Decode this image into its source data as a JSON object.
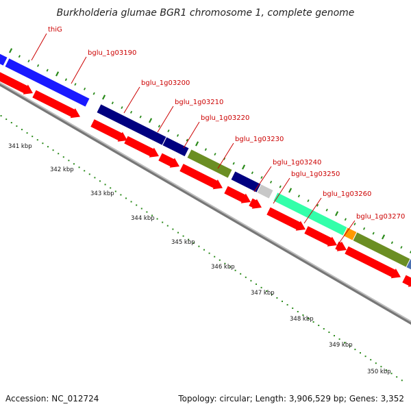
{
  "title": "Burkholderia glumae BGR1 chromosome 1, complete genome",
  "footer": {
    "accession": "Accession: NC_012724",
    "topology": "Topology: circular; Length: 3,906,529 bp; Genes: 3,352"
  },
  "colors": {
    "arrow": "#ff0000",
    "tick": "#2a8a1a",
    "label": "#cc0000",
    "backbone": "#8a8a8a"
  },
  "genes": [
    {
      "label": "thiG"
    },
    {
      "label": "bglu_1g03190"
    },
    {
      "label": "bglu_1g03200"
    },
    {
      "label": "bglu_1g03210"
    },
    {
      "label": "bglu_1g03220"
    },
    {
      "label": "bglu_1g03230"
    },
    {
      "label": "bglu_1g03240"
    },
    {
      "label": "bglu_1g03250"
    },
    {
      "label": "bglu_1g03260"
    },
    {
      "label": "bglu_1g03270"
    }
  ],
  "scale_ticks": [
    {
      "label": "341 kbp"
    },
    {
      "label": "342 kbp"
    },
    {
      "label": "343 kbp"
    },
    {
      "label": "344 kbp"
    },
    {
      "label": "345 kbp"
    },
    {
      "label": "346 kbp"
    },
    {
      "label": "347 kbp"
    },
    {
      "label": "348 kbp"
    },
    {
      "label": "349 kbp"
    },
    {
      "label": "350 kbp"
    }
  ],
  "cog_blocks": [
    {
      "color": "#1a1aff"
    },
    {
      "color": "#1a1aff"
    },
    {
      "color": "#000080"
    },
    {
      "color": "#000080"
    },
    {
      "color": "#6b8e23"
    },
    {
      "color": "#000080"
    },
    {
      "color": "#c8c8c8"
    },
    {
      "color": "#33ffaa"
    },
    {
      "color": "#ff9900"
    },
    {
      "color": "#6b8e23"
    },
    {
      "color": "#4a6fb0"
    }
  ]
}
